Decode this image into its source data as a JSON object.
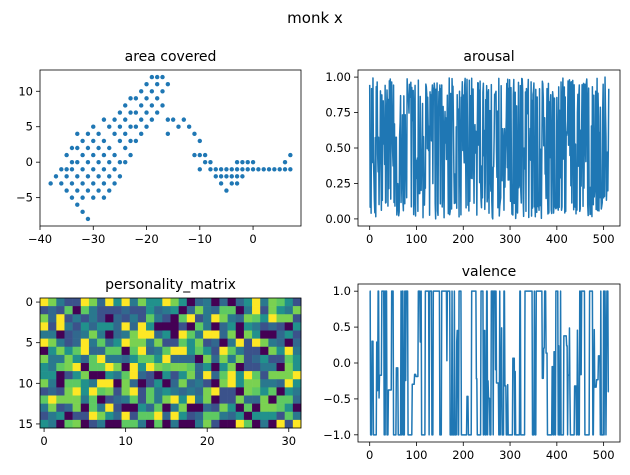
{
  "figure_title": "monk x",
  "colors": {
    "series": "#1f77b4",
    "axes": "#000000",
    "background": "#ffffff"
  },
  "chart_data": [
    {
      "type": "scatter",
      "title": "area covered",
      "xlabel": "",
      "ylabel": "",
      "xlim": [
        -40,
        9
      ],
      "ylim": [
        -9,
        13
      ],
      "xticks": [
        -40,
        -30,
        -20,
        -10,
        0
      ],
      "yticks": [
        -5,
        0,
        5,
        10
      ],
      "grid": false,
      "points": [
        [
          -38,
          -3
        ],
        [
          -37,
          -2
        ],
        [
          -36,
          -1
        ],
        [
          -36,
          -3
        ],
        [
          -35,
          1
        ],
        [
          -35,
          -1
        ],
        [
          -35,
          -2
        ],
        [
          -35,
          -4
        ],
        [
          -34,
          2
        ],
        [
          -34,
          0
        ],
        [
          -34,
          -1
        ],
        [
          -34,
          -3
        ],
        [
          -34,
          -5
        ],
        [
          -33,
          4
        ],
        [
          -33,
          2
        ],
        [
          -33,
          0
        ],
        [
          -33,
          -2
        ],
        [
          -33,
          -4
        ],
        [
          -33,
          -6
        ],
        [
          -32,
          3
        ],
        [
          -32,
          1
        ],
        [
          -32,
          -1
        ],
        [
          -32,
          -3
        ],
        [
          -32,
          -5
        ],
        [
          -32,
          -7
        ],
        [
          -31,
          4
        ],
        [
          -31,
          2
        ],
        [
          -31,
          0
        ],
        [
          -31,
          -2
        ],
        [
          -31,
          -4
        ],
        [
          -31,
          -8
        ],
        [
          -30,
          5
        ],
        [
          -30,
          3
        ],
        [
          -30,
          1
        ],
        [
          -30,
          -1
        ],
        [
          -30,
          -3
        ],
        [
          -30,
          -5
        ],
        [
          -29,
          4
        ],
        [
          -29,
          2
        ],
        [
          -29,
          0
        ],
        [
          -29,
          -2
        ],
        [
          -29,
          -4
        ],
        [
          -28,
          6
        ],
        [
          -28,
          3
        ],
        [
          -28,
          1
        ],
        [
          -28,
          -1
        ],
        [
          -28,
          -3
        ],
        [
          -28,
          -5
        ],
        [
          -27,
          5
        ],
        [
          -27,
          2
        ],
        [
          -27,
          0
        ],
        [
          -27,
          -2
        ],
        [
          -27,
          -4
        ],
        [
          -26,
          6
        ],
        [
          -26,
          4
        ],
        [
          -26,
          1
        ],
        [
          -26,
          -1
        ],
        [
          -26,
          -3
        ],
        [
          -25,
          7
        ],
        [
          -25,
          5
        ],
        [
          -25,
          3
        ],
        [
          -25,
          0
        ],
        [
          -25,
          -2
        ],
        [
          -24,
          8
        ],
        [
          -24,
          6
        ],
        [
          -24,
          4
        ],
        [
          -24,
          2
        ],
        [
          -24,
          0
        ],
        [
          -23,
          9
        ],
        [
          -23,
          7
        ],
        [
          -23,
          5
        ],
        [
          -23,
          3
        ],
        [
          -23,
          1
        ],
        [
          -22,
          9
        ],
        [
          -22,
          7
        ],
        [
          -22,
          5
        ],
        [
          -22,
          3
        ],
        [
          -21,
          10
        ],
        [
          -21,
          8
        ],
        [
          -21,
          6
        ],
        [
          -21,
          4
        ],
        [
          -20,
          11
        ],
        [
          -20,
          9
        ],
        [
          -20,
          7
        ],
        [
          -20,
          5
        ],
        [
          -19,
          12
        ],
        [
          -19,
          10
        ],
        [
          -19,
          8
        ],
        [
          -19,
          6
        ],
        [
          -18,
          12
        ],
        [
          -18,
          11
        ],
        [
          -18,
          9
        ],
        [
          -18,
          7
        ],
        [
          -17,
          12
        ],
        [
          -17,
          10
        ],
        [
          -17,
          8
        ],
        [
          -16,
          11
        ],
        [
          -16,
          6
        ],
        [
          -16,
          4
        ],
        [
          -15,
          6
        ],
        [
          -14,
          5
        ],
        [
          -13,
          6
        ],
        [
          -12,
          5
        ],
        [
          -11,
          4
        ],
        [
          -11,
          1
        ],
        [
          -10,
          3
        ],
        [
          -10,
          1
        ],
        [
          -10,
          -1
        ],
        [
          -9,
          1
        ],
        [
          -9,
          0
        ],
        [
          -8,
          -1
        ],
        [
          -8,
          0
        ],
        [
          -7,
          -2
        ],
        [
          -7,
          -1
        ],
        [
          -6,
          -3
        ],
        [
          -6,
          -2
        ],
        [
          -6,
          -1
        ],
        [
          -5,
          -4
        ],
        [
          -5,
          -2
        ],
        [
          -5,
          -1
        ],
        [
          -4,
          -3
        ],
        [
          -4,
          -2
        ],
        [
          -4,
          -1
        ],
        [
          -3,
          -3
        ],
        [
          -3,
          -2
        ],
        [
          -3,
          -1
        ],
        [
          -3,
          0
        ],
        [
          -2,
          -2
        ],
        [
          -2,
          -1
        ],
        [
          -2,
          0
        ],
        [
          -1,
          -1
        ],
        [
          -1,
          0
        ],
        [
          0,
          -1
        ],
        [
          0,
          0
        ],
        [
          1,
          -1
        ],
        [
          2,
          -1
        ],
        [
          3,
          -1
        ],
        [
          4,
          -1
        ],
        [
          5,
          -1
        ],
        [
          6,
          -1
        ],
        [
          6,
          0
        ],
        [
          7,
          -1
        ],
        [
          7,
          1
        ]
      ]
    },
    {
      "type": "line",
      "title": "arousal",
      "xlabel": "",
      "ylabel": "",
      "xlim": [
        -25,
        535
      ],
      "ylim": [
        -0.05,
        1.05
      ],
      "xticks": [
        0,
        100,
        200,
        300,
        400,
        500
      ],
      "yticks": [
        0.0,
        0.25,
        0.5,
        0.75,
        1.0
      ],
      "ytick_labels": [
        "0.00",
        "0.25",
        "0.50",
        "0.75",
        "1.00"
      ],
      "grid": false,
      "n_points": 512,
      "y_range": [
        0.0,
        1.0
      ],
      "description_values": "512 samples fluctuating densely between 0.0 and 1.0"
    },
    {
      "type": "heatmap",
      "title": "personality_matrix",
      "xlabel": "",
      "ylabel": "",
      "rows": 16,
      "cols": 32,
      "xticks": [
        0,
        10,
        20,
        30
      ],
      "yticks": [
        0,
        5,
        10,
        15
      ],
      "colormap": "viridis",
      "value_range": [
        0,
        1
      ]
    },
    {
      "type": "line",
      "title": "valence",
      "xlabel": "",
      "ylabel": "",
      "xlim": [
        -25,
        535
      ],
      "ylim": [
        -1.1,
        1.1
      ],
      "xticks": [
        0,
        100,
        200,
        300,
        400,
        500
      ],
      "yticks": [
        -1.0,
        -0.5,
        0.0,
        0.5,
        1.0
      ],
      "ytick_labels": [
        "−1.0",
        "−0.5",
        "0.0",
        "0.5",
        "1.0"
      ],
      "grid": false,
      "n_points": 512,
      "y_range": [
        -1.0,
        1.0
      ]
    }
  ]
}
